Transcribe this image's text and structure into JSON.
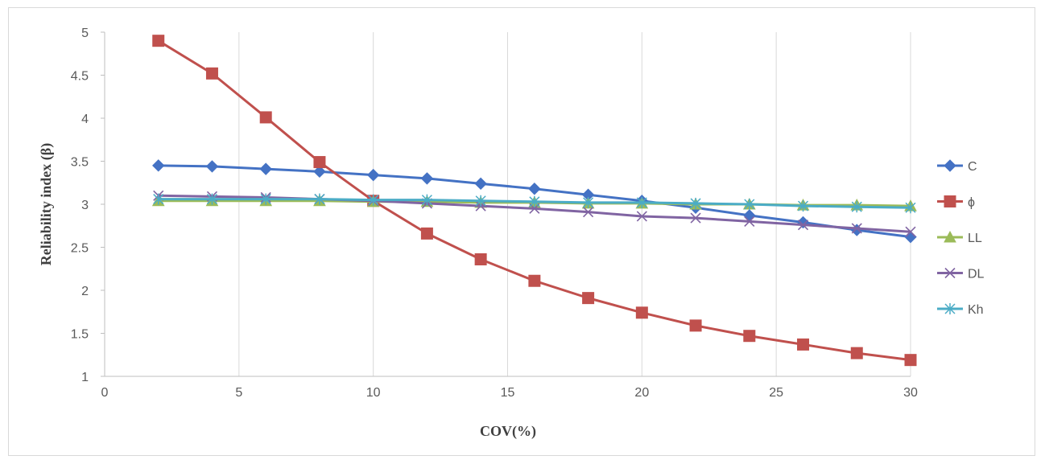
{
  "chart_data": {
    "type": "line",
    "xlabel": "COV(%)",
    "ylabel": "Reliability index (β)",
    "xlim": [
      0,
      30
    ],
    "ylim": [
      1,
      5
    ],
    "xticks": [
      0,
      5,
      10,
      15,
      20,
      25,
      30
    ],
    "yticks": [
      1,
      1.5,
      2,
      2.5,
      3,
      3.5,
      4,
      4.5,
      5
    ],
    "grid": "vertical",
    "legend_position": "right",
    "x": [
      2,
      4,
      6,
      8,
      10,
      12,
      14,
      16,
      18,
      20,
      22,
      24,
      26,
      28,
      30
    ],
    "series": [
      {
        "name": "C",
        "color": "#4472c4",
        "marker": "diamond",
        "values": [
          3.45,
          3.44,
          3.41,
          3.38,
          3.34,
          3.3,
          3.24,
          3.18,
          3.11,
          3.04,
          2.96,
          2.87,
          2.79,
          2.7,
          2.62
        ]
      },
      {
        "name": "ϕ",
        "color": "#c0504d",
        "marker": "square",
        "values": [
          4.9,
          4.52,
          4.01,
          3.49,
          3.04,
          2.66,
          2.36,
          2.11,
          1.91,
          1.74,
          1.59,
          1.47,
          1.37,
          1.27,
          1.19
        ]
      },
      {
        "name": "LL",
        "color": "#9bbb59",
        "marker": "triangle",
        "values": [
          3.04,
          3.04,
          3.04,
          3.04,
          3.03,
          3.03,
          3.02,
          3.02,
          3.01,
          3.01,
          3.0,
          3.0,
          2.99,
          2.99,
          2.98
        ]
      },
      {
        "name": "DL",
        "color": "#8064a2",
        "marker": "x",
        "values": [
          3.1,
          3.09,
          3.08,
          3.06,
          3.04,
          3.01,
          2.98,
          2.95,
          2.91,
          2.86,
          2.84,
          2.8,
          2.76,
          2.72,
          2.68
        ]
      },
      {
        "name": "Kh",
        "color": "#4bacc6",
        "marker": "star",
        "values": [
          3.06,
          3.06,
          3.06,
          3.06,
          3.05,
          3.05,
          3.04,
          3.03,
          3.02,
          3.02,
          3.01,
          3.0,
          2.98,
          2.97,
          2.96
        ]
      }
    ]
  }
}
